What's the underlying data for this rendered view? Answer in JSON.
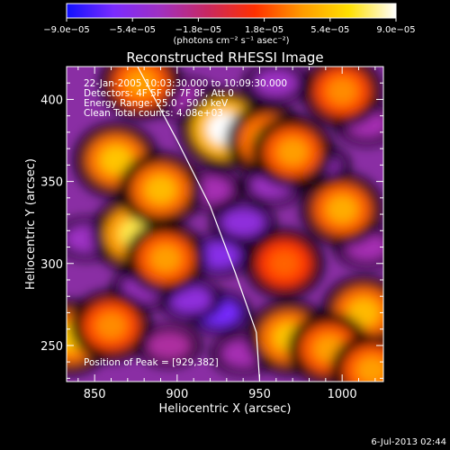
{
  "chart_data": {
    "type": "heatmap",
    "title": "Reconstructed RHESSI Image",
    "xlabel": "Heliocentric X (arcsec)",
    "ylabel": "Heliocentric Y (arcsec)",
    "xlim": [
      833,
      1025
    ],
    "ylim": [
      228,
      420
    ],
    "x_ticks": [
      850,
      900,
      950,
      1000
    ],
    "y_ticks": [
      250,
      300,
      350,
      400
    ],
    "x_tick_labels": [
      "850",
      "900",
      "950",
      "1000"
    ],
    "y_tick_labels": [
      "250",
      "300",
      "350",
      "400"
    ],
    "colorbar": {
      "range": [
        -9e-05,
        9e-05
      ],
      "ticks": [
        -9e-05,
        -5.4e-05,
        -1.8e-05,
        1.8e-05,
        5.4e-05,
        9e-05
      ],
      "tick_labels": [
        "−9.0e−05",
        "−5.4e−05",
        "−1.8e−05",
        "1.8e−05",
        "5.4e−05",
        "9.0e−05"
      ],
      "unit_label": "(photons cm⁻² s⁻¹ asec⁻²)",
      "colors": [
        "#1010ff",
        "#7a2bff",
        "#a030c0",
        "#c82860",
        "#ff3000",
        "#ff9a00",
        "#ffe000",
        "#ffffff"
      ]
    },
    "sources": [
      {
        "x": 929,
        "y": 382,
        "value": 9e-05
      },
      {
        "x": 875,
        "y": 318,
        "value": 7.2e-05
      },
      {
        "x": 863,
        "y": 363,
        "value": 5.4e-05
      },
      {
        "x": 890,
        "y": 345,
        "value": 5e-05
      },
      {
        "x": 955,
        "y": 375,
        "value": 5e-05
      },
      {
        "x": 970,
        "y": 368,
        "value": 4e-05
      },
      {
        "x": 1000,
        "y": 333,
        "value": 4.5e-05
      },
      {
        "x": 1013,
        "y": 270,
        "value": 5e-05
      },
      {
        "x": 968,
        "y": 255,
        "value": 5.4e-05
      },
      {
        "x": 992,
        "y": 248,
        "value": 4e-05
      },
      {
        "x": 835,
        "y": 255,
        "value": 5.4e-05
      },
      {
        "x": 860,
        "y": 262,
        "value": 3.5e-05
      },
      {
        "x": 893,
        "y": 303,
        "value": 4e-05
      },
      {
        "x": 878,
        "y": 410,
        "value": 4e-05
      },
      {
        "x": 1000,
        "y": 405,
        "value": 3.5e-05
      },
      {
        "x": 1018,
        "y": 235,
        "value": 4e-05
      },
      {
        "x": 965,
        "y": 300,
        "value": 2.5e-05
      }
    ],
    "sinks": [
      {
        "x": 925,
        "y": 270,
        "value": -6.5e-05
      },
      {
        "x": 908,
        "y": 278,
        "value": -5e-05
      },
      {
        "x": 925,
        "y": 305,
        "value": -5.5e-05
      },
      {
        "x": 940,
        "y": 325,
        "value": -5e-05
      },
      {
        "x": 958,
        "y": 348,
        "value": -4e-05
      },
      {
        "x": 920,
        "y": 345,
        "value": -3.5e-05
      },
      {
        "x": 985,
        "y": 360,
        "value": -4e-05
      },
      {
        "x": 845,
        "y": 315,
        "value": -4e-05
      },
      {
        "x": 880,
        "y": 285,
        "value": -4e-05
      },
      {
        "x": 905,
        "y": 400,
        "value": -3.5e-05
      },
      {
        "x": 960,
        "y": 410,
        "value": -4e-05
      },
      {
        "x": 1015,
        "y": 385,
        "value": -3.5e-05
      },
      {
        "x": 1015,
        "y": 310,
        "value": -3.5e-05
      },
      {
        "x": 940,
        "y": 245,
        "value": -3.5e-05
      },
      {
        "x": 895,
        "y": 250,
        "value": -3e-05
      }
    ],
    "limb_curve": [
      [
        876,
        420
      ],
      [
        900,
        375
      ],
      [
        920,
        335
      ],
      [
        935,
        295
      ],
      [
        948,
        258
      ],
      [
        950,
        228
      ]
    ],
    "info": [
      "22-Jan-2005 10:03:30.000 to 10:09:30.000",
      "Detectors: 4F 5F 6F 7F 8F, Att 0",
      "Energy Range: 25.0 - 50.0 keV",
      "Clean    Total counts: 4.08e+03"
    ],
    "peak_label": "Position of Peak = [929,382]",
    "footer": "6-Jul-2013 02:44"
  }
}
